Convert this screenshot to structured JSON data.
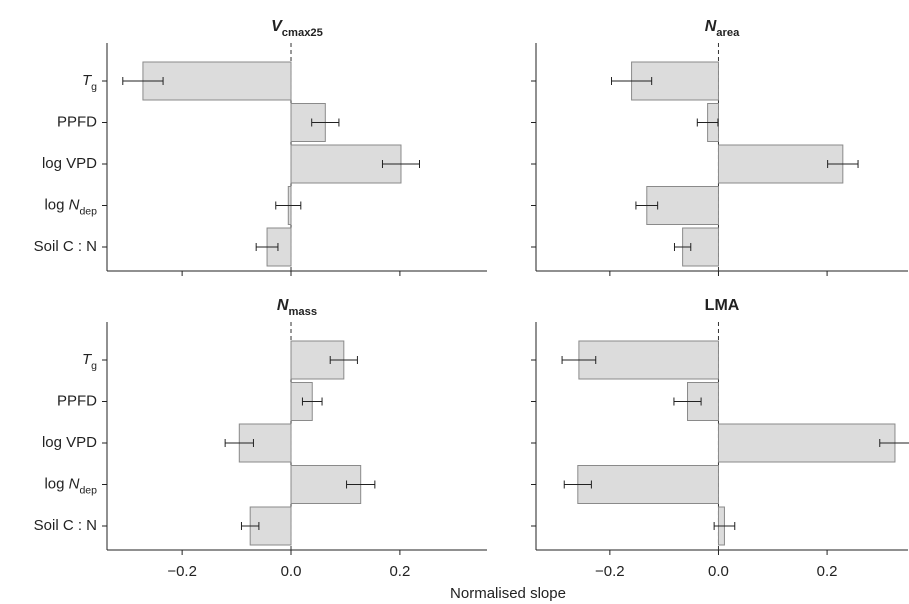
{
  "xlabel": "Normalised slope",
  "chart_data": [
    {
      "type": "bar",
      "orientation": "horizontal",
      "row": 0,
      "col": 0,
      "title": [
        {
          "text": "V",
          "style": "italic"
        },
        {
          "text": "cmax25",
          "style": "sub"
        }
      ],
      "categories": [
        [
          {
            "text": "T",
            "style": "italic"
          },
          {
            "text": "g",
            "style": "sub"
          }
        ],
        [
          {
            "text": "PPFD"
          }
        ],
        [
          {
            "text": "log VPD"
          }
        ],
        [
          {
            "text": "log "
          },
          {
            "text": "N",
            "style": "italic"
          },
          {
            "text": "dep",
            "style": "sub"
          }
        ],
        [
          {
            "text": "Soil C : N"
          }
        ]
      ],
      "values": [
        -0.272,
        0.063,
        0.202,
        -0.005,
        -0.044
      ],
      "errors": [
        0.037,
        0.025,
        0.034,
        0.023,
        0.02
      ],
      "color": "#dcdcdc",
      "xlim": [
        -0.338,
        0.36
      ],
      "xticks": [
        -0.2,
        0,
        0.2
      ]
    },
    {
      "type": "bar",
      "orientation": "horizontal",
      "row": 0,
      "col": 1,
      "title": [
        {
          "text": "N",
          "style": "italic"
        },
        {
          "text": "area",
          "style": "sub"
        }
      ],
      "values": [
        -0.16,
        -0.02,
        0.229,
        -0.132,
        -0.066
      ],
      "errors": [
        0.037,
        0.019,
        0.028,
        0.02,
        0.015
      ],
      "color": "#dcdcdc",
      "xlim": [
        -0.336,
        0.349
      ],
      "xticks": [
        -0.2,
        0,
        0.2
      ]
    },
    {
      "type": "bar",
      "orientation": "horizontal",
      "row": 1,
      "col": 0,
      "title": [
        {
          "text": "N",
          "style": "italic"
        },
        {
          "text": "mass",
          "style": "sub"
        }
      ],
      "categories": [
        [
          {
            "text": "T",
            "style": "italic"
          },
          {
            "text": "g",
            "style": "sub"
          }
        ],
        [
          {
            "text": "PPFD"
          }
        ],
        [
          {
            "text": "log VPD"
          }
        ],
        [
          {
            "text": "log "
          },
          {
            "text": "N",
            "style": "italic"
          },
          {
            "text": "dep",
            "style": "sub"
          }
        ],
        [
          {
            "text": "Soil C : N"
          }
        ]
      ],
      "values": [
        0.097,
        0.039,
        -0.095,
        0.128,
        -0.075
      ],
      "errors": [
        0.025,
        0.018,
        0.026,
        0.026,
        0.016
      ],
      "color": "#dcdcdc",
      "xlim": [
        -0.338,
        0.36
      ],
      "xticks": [
        {
          "value": -0.2,
          "label": "−0.2"
        },
        {
          "value": 0,
          "label": "0.0"
        },
        0.2
      ]
    },
    {
      "type": "bar",
      "orientation": "horizontal",
      "row": 1,
      "col": 1,
      "title": [
        {
          "text": "LMA"
        }
      ],
      "values": [
        -0.257,
        -0.057,
        0.325,
        -0.259,
        0.011
      ],
      "errors": [
        0.031,
        0.025,
        0.028,
        0.025,
        0.019
      ],
      "color": "#dcdcdc",
      "xlim": [
        -0.336,
        0.349
      ],
      "xticks": [
        {
          "value": -0.2,
          "label": "−0.2"
        },
        {
          "value": 0,
          "label": "0.0"
        },
        0.2
      ]
    }
  ]
}
